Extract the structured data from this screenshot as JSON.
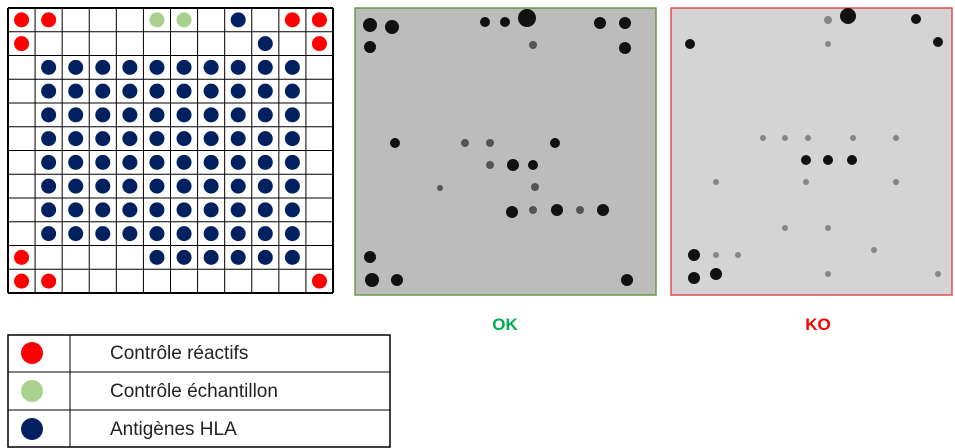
{
  "panels": {
    "ok": {
      "label": "OK"
    },
    "ko": {
      "label": "KO"
    }
  },
  "legend": [
    {
      "label": "Contrôle réactifs"
    },
    {
      "label": "Contrôle échantillon"
    },
    {
      "label": "Antigènes HLA"
    }
  ]
}
